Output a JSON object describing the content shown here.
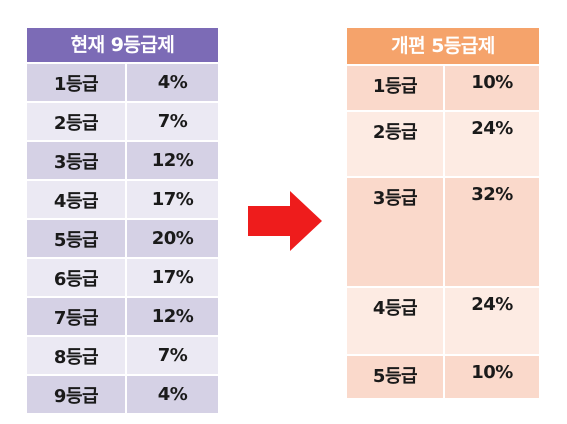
{
  "left_table": {
    "title": "현재 9등급제",
    "header_color": "#7c6bb6",
    "rows": [
      {
        "grade": "1등급",
        "percent": "4%"
      },
      {
        "grade": "2등급",
        "percent": "7%"
      },
      {
        "grade": "3등급",
        "percent": "12%"
      },
      {
        "grade": "4등급",
        "percent": "17%"
      },
      {
        "grade": "5등급",
        "percent": "20%"
      },
      {
        "grade": "6등급",
        "percent": "17%"
      },
      {
        "grade": "7등급",
        "percent": "12%"
      },
      {
        "grade": "8등급",
        "percent": "7%"
      },
      {
        "grade": "9등급",
        "percent": "4%"
      }
    ]
  },
  "right_table": {
    "title": "개편 5등급제",
    "header_color": "#f5a36b",
    "rows": [
      {
        "grade": "1등급",
        "percent": "10%"
      },
      {
        "grade": "2등급",
        "percent": "24%"
      },
      {
        "grade": "3등급",
        "percent": "32%"
      },
      {
        "grade": "4등급",
        "percent": "24%"
      },
      {
        "grade": "5등급",
        "percent": "10%"
      }
    ]
  },
  "arrow": {
    "icon": "right-arrow-icon",
    "color": "#ee1c1c"
  }
}
